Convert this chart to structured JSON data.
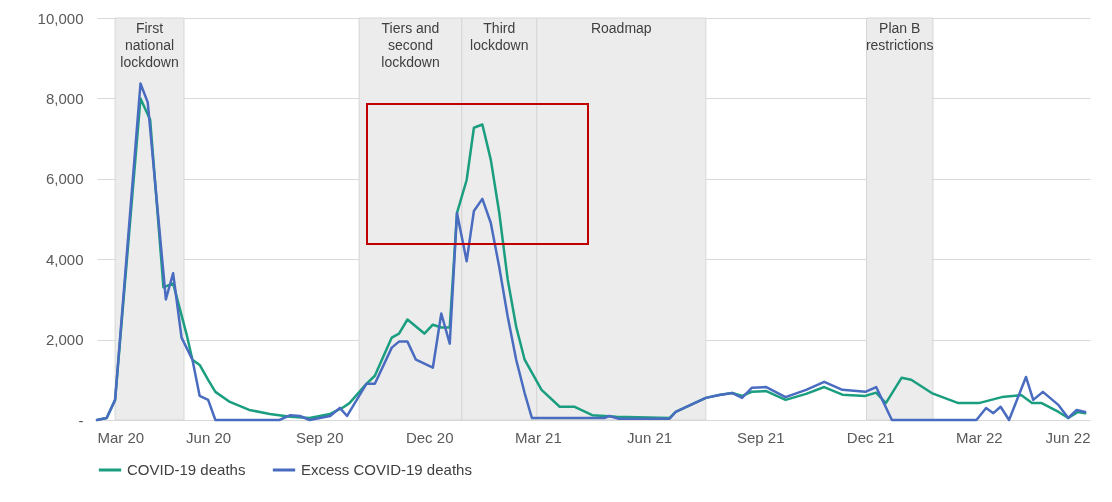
{
  "chart_data": {
    "type": "line",
    "series": [
      {
        "name": "COVID-19 deaths",
        "color": "#1a9e7f",
        "x": [
          "2020-03-01",
          "2020-03-09",
          "2020-03-16",
          "2020-04-06",
          "2020-04-14",
          "2020-04-25",
          "2020-05-03",
          "2020-05-14",
          "2020-05-19",
          "2020-05-25",
          "2020-06-01",
          "2020-06-07",
          "2020-06-19",
          "2020-07-05",
          "2020-07-22",
          "2020-08-08",
          "2020-08-24",
          "2020-09-10",
          "2020-09-20",
          "2020-09-26",
          "2020-10-10",
          "2020-10-17",
          "2020-10-31",
          "2020-11-06",
          "2020-11-13",
          "2020-11-27",
          "2020-12-04",
          "2020-12-11",
          "2020-12-18",
          "2020-12-24",
          "2021-01-01",
          "2021-01-07",
          "2021-01-14",
          "2021-01-21",
          "2021-01-28",
          "2021-02-04",
          "2021-02-11",
          "2021-02-18",
          "2021-03-04",
          "2021-03-19",
          "2021-03-31",
          "2021-04-15",
          "2021-05-05",
          "2021-06-18",
          "2021-06-23",
          "2021-07-18",
          "2021-07-29",
          "2021-08-09",
          "2021-08-17",
          "2021-08-25",
          "2021-09-06",
          "2021-09-22",
          "2021-10-09",
          "2021-10-24",
          "2021-11-08",
          "2021-11-27",
          "2021-12-06",
          "2021-12-14",
          "2021-12-27",
          "2022-01-04",
          "2022-01-21",
          "2022-02-12",
          "2022-03-01",
          "2022-03-20",
          "2022-04-05",
          "2022-04-14",
          "2022-04-22",
          "2022-05-06",
          "2022-05-14",
          "2022-05-22",
          "2022-05-28"
        ],
        "values": [
          0,
          50,
          500,
          8000,
          7470,
          3300,
          3400,
          2150,
          1500,
          1370,
          1000,
          700,
          450,
          250,
          150,
          80,
          50,
          150,
          300,
          420,
          900,
          1100,
          2050,
          2150,
          2500,
          2150,
          2370,
          2300,
          2300,
          5150,
          5970,
          7270,
          7350,
          6470,
          5150,
          3490,
          2320,
          1500,
          750,
          330,
          330,
          120,
          80,
          50,
          200,
          550,
          620,
          670,
          600,
          700,
          720,
          500,
          650,
          820,
          630,
          600,
          680,
          420,
          1050,
          1000,
          670,
          420,
          420,
          570,
          620,
          420,
          420,
          200,
          50,
          200,
          170
        ]
      },
      {
        "name": "Excess COVID-19 deaths",
        "color": "#4a6cc0",
        "x": [
          "2020-03-01",
          "2020-03-09",
          "2020-03-16",
          "2020-04-06",
          "2020-04-12",
          "2020-04-27",
          "2020-05-03",
          "2020-05-10",
          "2020-05-19",
          "2020-05-25",
          "2020-06-01",
          "2020-06-07",
          "2020-07-30",
          "2020-08-08",
          "2020-08-16",
          "2020-08-24",
          "2020-09-10",
          "2020-09-18",
          "2020-09-24",
          "2020-10-10",
          "2020-10-17",
          "2020-10-31",
          "2020-11-06",
          "2020-11-13",
          "2020-11-20",
          "2020-12-04",
          "2020-12-11",
          "2020-12-18",
          "2020-12-24",
          "2021-01-01",
          "2021-01-07",
          "2021-01-14",
          "2021-01-21",
          "2021-01-28",
          "2021-02-04",
          "2021-02-11",
          "2021-02-18",
          "2021-02-24",
          "2021-04-25",
          "2021-04-29",
          "2021-05-07",
          "2021-06-18",
          "2021-06-23",
          "2021-07-18",
          "2021-07-29",
          "2021-08-09",
          "2021-08-17",
          "2021-08-25",
          "2021-09-06",
          "2021-09-22",
          "2021-10-09",
          "2021-10-24",
          "2021-11-08",
          "2021-11-27",
          "2021-12-06",
          "2021-12-19",
          "2022-02-27",
          "2022-03-07",
          "2022-03-13",
          "2022-03-19",
          "2022-03-26",
          "2022-04-09",
          "2022-04-15",
          "2022-04-23",
          "2022-05-06",
          "2022-05-14",
          "2022-05-21",
          "2022-05-28"
        ],
        "values": [
          0,
          50,
          500,
          8370,
          7900,
          3000,
          3650,
          2050,
          1500,
          600,
          500,
          0,
          0,
          120,
          100,
          0,
          100,
          300,
          100,
          900,
          900,
          1800,
          1950,
          1950,
          1500,
          1300,
          2650,
          1900,
          5150,
          3950,
          5200,
          5500,
          4900,
          3800,
          2570,
          1500,
          670,
          50,
          50,
          100,
          30,
          30,
          200,
          550,
          620,
          670,
          550,
          800,
          820,
          570,
          750,
          950,
          750,
          700,
          820,
          0,
          0,
          300,
          170,
          330,
          0,
          1070,
          500,
          700,
          370,
          50,
          250,
          200
        ]
      }
    ],
    "xlim": [
      "2020-03-01",
      "2022-06-01"
    ],
    "xticks": [
      {
        "value": "2020-03-01",
        "label": "Mar 20"
      },
      {
        "value": "2020-06-01",
        "label": "Jun 20"
      },
      {
        "value": "2020-09-01",
        "label": "Sep 20"
      },
      {
        "value": "2020-12-01",
        "label": "Dec 20"
      },
      {
        "value": "2021-03-01",
        "label": "Mar 21"
      },
      {
        "value": "2021-06-01",
        "label": "Jun 21"
      },
      {
        "value": "2021-09-01",
        "label": "Sep 21"
      },
      {
        "value": "2021-12-01",
        "label": "Dec 21"
      },
      {
        "value": "2022-03-01",
        "label": "Mar 22"
      },
      {
        "value": "2022-06-01",
        "label": "Jun 22"
      }
    ],
    "ylim": [
      0,
      10000
    ],
    "yticks": [
      {
        "value": 0,
        "label": "-"
      },
      {
        "value": 2000,
        "label": "2,000"
      },
      {
        "value": 4000,
        "label": "4,000"
      },
      {
        "value": 6000,
        "label": "6,000"
      },
      {
        "value": 8000,
        "label": "8,000"
      },
      {
        "value": 10000,
        "label": "10,000"
      }
    ],
    "bands": [
      {
        "axis": "x",
        "from": "2020-03-16",
        "to": "2020-05-12",
        "label": "First\nnational\nlockdown",
        "color": "#ececec"
      },
      {
        "axis": "x",
        "from": "2020-10-04",
        "to": "2020-12-28",
        "label": "Tiers and\nsecond\nlockdown",
        "color": "#ececec"
      },
      {
        "axis": "x",
        "from": "2020-12-28",
        "to": "2021-02-28",
        "label": "Third\nlockdown",
        "color": "#ececec"
      },
      {
        "axis": "x",
        "from": "2021-02-28",
        "to": "2021-07-18",
        "label": "Roadmap",
        "color": "#ececec"
      },
      {
        "axis": "x",
        "from": "2021-11-28",
        "to": "2022-01-22",
        "label": "Plan B\nrestrictions",
        "color": "#ececec"
      }
    ],
    "grid": "y",
    "legend": "bottom",
    "marker": "none",
    "line_style": "solid"
  }
}
